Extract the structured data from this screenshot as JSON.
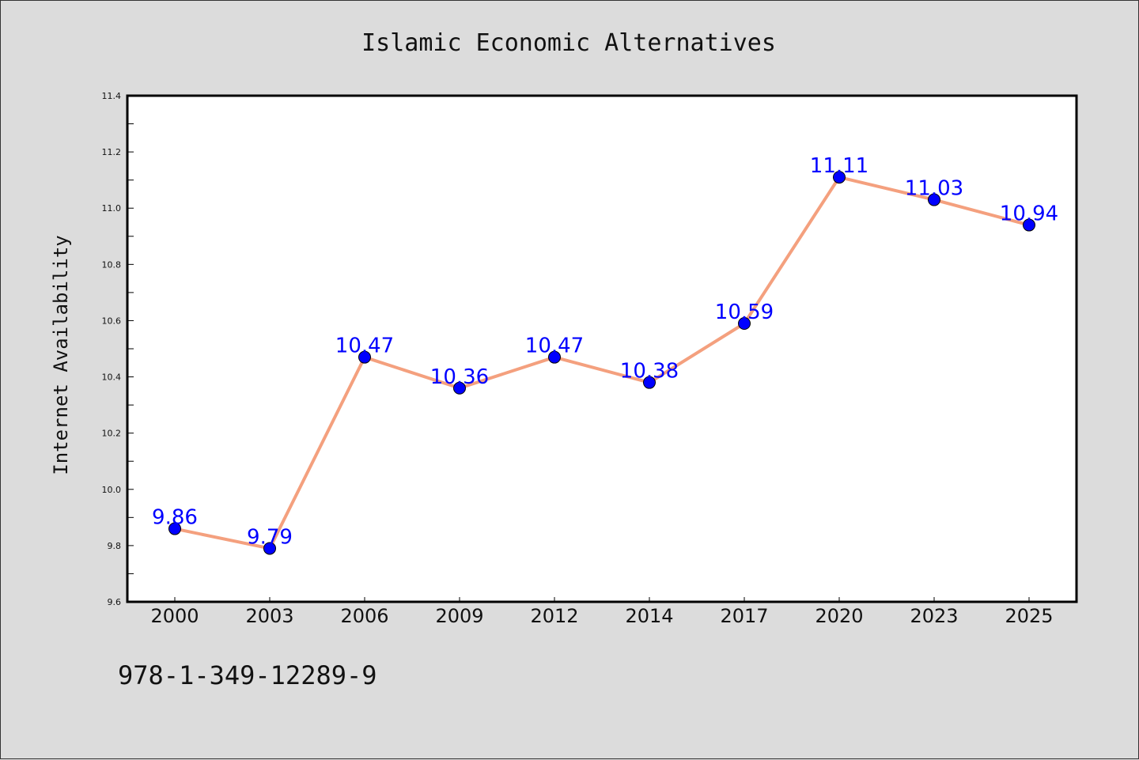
{
  "chart_data": {
    "type": "line",
    "title": "Islamic Economic Alternatives",
    "xlabel": "",
    "ylabel": "Internet Availability",
    "categories": [
      "2000",
      "2003",
      "2006",
      "2009",
      "2012",
      "2014",
      "2017",
      "2020",
      "2023",
      "2025"
    ],
    "series": [
      {
        "values": [
          9.86,
          9.79,
          10.47,
          10.36,
          10.47,
          10.38,
          10.59,
          11.11,
          11.03,
          10.94
        ],
        "labels": [
          "9.86",
          "9.79",
          "10.47",
          "10.36",
          "10.47",
          "10.38",
          "10.59",
          "11.11",
          "11.03",
          "10.94"
        ]
      }
    ],
    "ylim": [
      9.6,
      11.4
    ],
    "yticks": [
      "9.6",
      "9.8",
      "10.0",
      "10.2",
      "10.4",
      "10.6",
      "10.8",
      "11.0",
      "11.2",
      "11.4"
    ],
    "grid": false,
    "colors": {
      "line": "#f4a07e",
      "marker": "#0000ff",
      "data_label": "#0000ff",
      "plot_bg": "#ffffff",
      "page_bg": "#dcdcdc"
    }
  },
  "footer": {
    "text": "978-1-349-12289-9"
  }
}
